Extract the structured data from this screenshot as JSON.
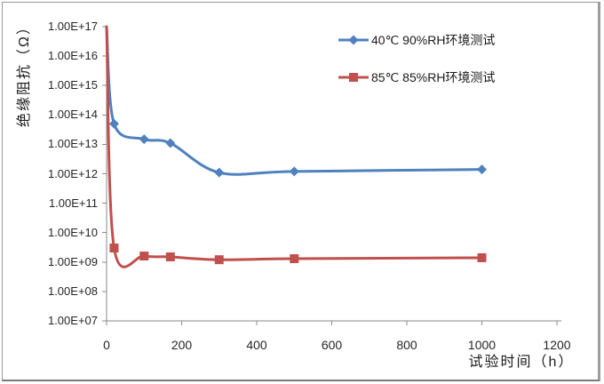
{
  "chart_data": {
    "type": "line",
    "title": "",
    "xlabel": "试验时间（h）",
    "ylabel": "绝缘阻抗（Ω）",
    "x_axis": {
      "min": 0,
      "max": 1200,
      "ticks": [
        0,
        200,
        400,
        600,
        800,
        1000,
        1200
      ],
      "tick_labels": [
        "0",
        "200",
        "400",
        "600",
        "800",
        "1000",
        "1200"
      ]
    },
    "y_axis": {
      "scale": "log",
      "min": 10000000.0,
      "max": 1e+17,
      "tick_labels": [
        "1.00E+17",
        "1.00E+16",
        "1.00E+15",
        "1.00E+14",
        "1.00E+13",
        "1.00E+12",
        "1.00E+11",
        "1.00E+10",
        "1.00E+09",
        "1.00E+08",
        "1.00E+07"
      ]
    },
    "grid": false,
    "legend_position": "inside-top-right",
    "series": [
      {
        "name": "40℃ 90%RH环境测试",
        "color": "#4F81BD",
        "marker": "diamond",
        "points": [
          [
            0,
            1e+17
          ],
          [
            20,
            50000000000000.0
          ],
          [
            100,
            15000000000000.0
          ],
          [
            170,
            11000000000000.0
          ],
          [
            300,
            1100000000000.0
          ],
          [
            500,
            1200000000000.0
          ],
          [
            1000,
            1400000000000.0
          ]
        ]
      },
      {
        "name": "85℃ 85%RH环境测试",
        "color": "#C0504D",
        "marker": "square",
        "points": [
          [
            0,
            1e+17
          ],
          [
            20,
            3000000000.0
          ],
          [
            100,
            1600000000.0
          ],
          [
            170,
            1500000000.0
          ],
          [
            300,
            1200000000.0
          ],
          [
            500,
            1300000000.0
          ],
          [
            1000,
            1400000000.0
          ]
        ]
      }
    ],
    "axis_color": "#8a8a8a"
  }
}
